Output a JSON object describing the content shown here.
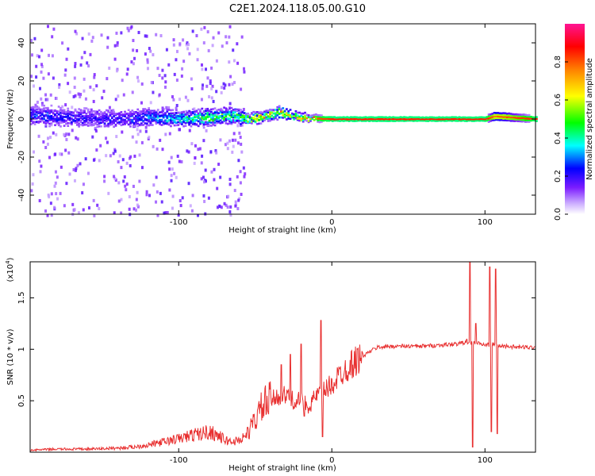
{
  "title": "C2E1.2024.118.05.00.G10",
  "colors": {
    "accent": "#e83030",
    "axis": "#000000"
  },
  "chart_data": [
    {
      "type": "heatmap",
      "xlabel": "Height of straight line (km)",
      "ylabel": "Frequency (Hz)",
      "xlim": [
        -197,
        133
      ],
      "ylim": [
        -50,
        50
      ],
      "xticks": [
        -100,
        0,
        100
      ],
      "yticks": [
        -40,
        -20,
        0,
        20,
        40
      ],
      "colorbar": {
        "label": "Normalized spectral amplitude",
        "ticks": [
          0.0,
          0.2,
          0.4,
          0.6,
          0.8
        ],
        "range": [
          0,
          1
        ]
      },
      "ridge": [
        {
          "x": -190,
          "f": 2.0,
          "amp": 0.25,
          "spread": 4.0
        },
        {
          "x": -175,
          "f": 1.0,
          "amp": 0.22,
          "spread": 4.0
        },
        {
          "x": -160,
          "f": 0.5,
          "amp": 0.22,
          "spread": 4.0
        },
        {
          "x": -140,
          "f": 0.0,
          "amp": 0.22,
          "spread": 3.5
        },
        {
          "x": -120,
          "f": 1.0,
          "amp": 0.3,
          "spread": 3.5
        },
        {
          "x": -100,
          "f": 0.5,
          "amp": 0.38,
          "spread": 3.0
        },
        {
          "x": -80,
          "f": 1.0,
          "amp": 0.5,
          "spread": 3.0
        },
        {
          "x": -65,
          "f": 2.0,
          "amp": 0.45,
          "spread": 3.0
        },
        {
          "x": -55,
          "f": 0.0,
          "amp": 0.6,
          "spread": 2.0
        },
        {
          "x": -45,
          "f": 1.5,
          "amp": 0.65,
          "spread": 2.0
        },
        {
          "x": -35,
          "f": 3.5,
          "amp": 0.7,
          "spread": 1.8
        },
        {
          "x": -25,
          "f": 1.5,
          "amp": 0.72,
          "spread": 1.5
        },
        {
          "x": -15,
          "f": 0.5,
          "amp": 0.78,
          "spread": 1.2
        },
        {
          "x": 0,
          "f": 0.0,
          "amp": 0.85,
          "spread": 1.0
        },
        {
          "x": 50,
          "f": 0.0,
          "amp": 0.85,
          "spread": 1.0
        },
        {
          "x": 88,
          "f": 0.0,
          "amp": 0.85,
          "spread": 1.0
        },
        {
          "x": 100,
          "f": 0.0,
          "amp": 0.85,
          "spread": 1.0
        },
        {
          "x": 106,
          "f": 1.5,
          "amp": 0.8,
          "spread": 1.5
        },
        {
          "x": 133,
          "f": 0.0,
          "amp": 0.85,
          "spread": 1.0
        }
      ]
    },
    {
      "type": "line",
      "xlabel": "Height of straight line (km)",
      "ylabel": "SNR (10 * v/v)",
      "multiplier_label": "(x10",
      "multiplier_exp": "4",
      "multiplier_close": ")",
      "xlim": [
        -197,
        133
      ],
      "ylim": [
        0,
        1.85
      ],
      "xticks": [
        -100,
        0,
        100
      ],
      "yticks": [
        0.5,
        1.0,
        1.5
      ],
      "color": "#e83030",
      "series": [
        {
          "x": [
            -197,
            -180,
            -160,
            -140,
            -130,
            -120,
            -110,
            -100,
            -95,
            -90,
            -85,
            -80,
            -75,
            -70,
            -65,
            -60,
            -55,
            -50,
            -45,
            -40,
            -35,
            -30,
            -25,
            -20,
            -15,
            -10,
            -5,
            0,
            5,
            10,
            15,
            20,
            25,
            30,
            40,
            50,
            60,
            70,
            80,
            85,
            88,
            90,
            92,
            95,
            100,
            105,
            108,
            110,
            115,
            120,
            133
          ],
          "y": [
            0.02,
            0.03,
            0.03,
            0.04,
            0.05,
            0.07,
            0.1,
            0.13,
            0.15,
            0.17,
            0.18,
            0.2,
            0.17,
            0.12,
            0.1,
            0.12,
            0.18,
            0.32,
            0.45,
            0.5,
            0.55,
            0.55,
            0.5,
            0.5,
            0.45,
            0.55,
            0.6,
            0.65,
            0.75,
            0.82,
            0.88,
            0.93,
            0.98,
            1.02,
            1.03,
            1.03,
            1.03,
            1.04,
            1.05,
            1.06,
            1.08,
            1.05,
            1.07,
            1.06,
            1.04,
            1.05,
            1.04,
            1.03,
            1.03,
            1.02,
            1.02
          ],
          "spikes": [
            {
              "x": -33,
              "y": 0.85
            },
            {
              "x": -27,
              "y": 0.95
            },
            {
              "x": -20,
              "y": 1.05
            },
            {
              "x": -18,
              "y": 0.35
            },
            {
              "x": -7,
              "y": 1.28
            },
            {
              "x": -6,
              "y": 0.15
            },
            {
              "x": 90,
              "y": 1.85
            },
            {
              "x": 92,
              "y": 0.05
            },
            {
              "x": 94,
              "y": 1.25
            },
            {
              "x": 103,
              "y": 1.8
            },
            {
              "x": 104,
              "y": 0.2
            },
            {
              "x": 107,
              "y": 1.78
            },
            {
              "x": 108,
              "y": 0.18
            }
          ]
        }
      ]
    }
  ]
}
